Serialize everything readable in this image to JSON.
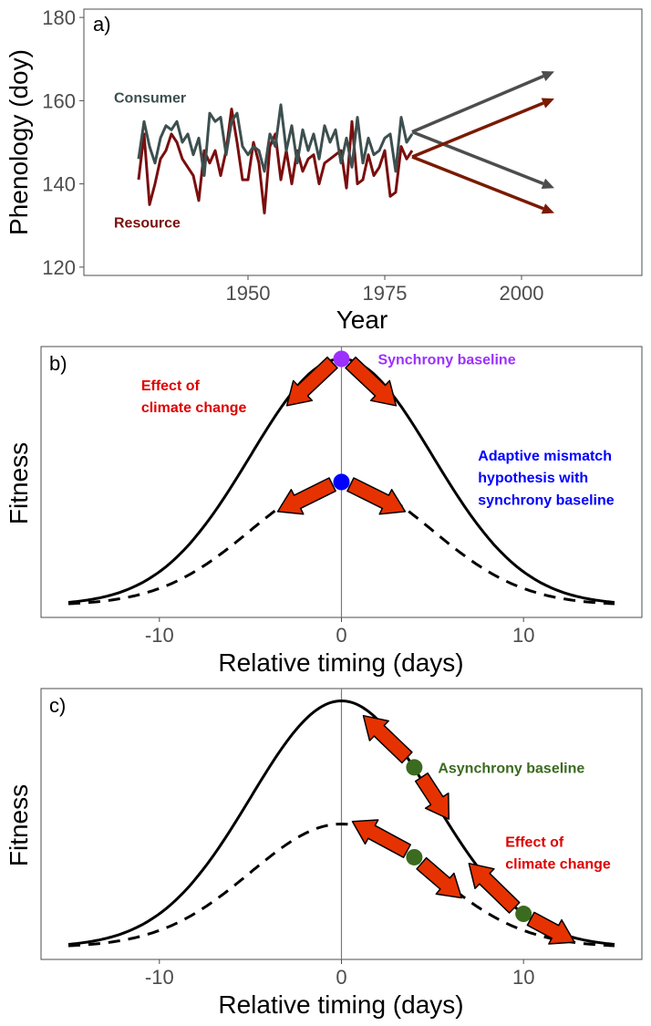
{
  "colors": {
    "consumer": "#3d4f4f",
    "resource": "#7a0e0e",
    "arrow_a_consumer": "#4d4d4d",
    "arrow_a_resource": "#7a1a00",
    "effect_arrow_fill": "#e63200",
    "effect_text": "#e00000",
    "sync_baseline_dot": "#9b30ff",
    "adaptive_dot": "#0000ff",
    "async_baseline": "#3a6b1f"
  },
  "chart_data": [
    {
      "type": "line",
      "panel_label": "a)",
      "xlabel": "Year",
      "ylabel": "Phenology (doy)",
      "xlim": [
        1920,
        2022
      ],
      "ylim": [
        118,
        182
      ],
      "x_ticks": [
        1950,
        1975,
        2000
      ],
      "y_ticks": [
        120,
        140,
        160,
        180
      ],
      "grid": false,
      "series": [
        {
          "name": "Consumer",
          "x": [
            1930,
            1931,
            1932,
            1933,
            1934,
            1935,
            1936,
            1937,
            1938,
            1939,
            1940,
            1941,
            1942,
            1943,
            1944,
            1945,
            1946,
            1947,
            1948,
            1949,
            1950,
            1951,
            1952,
            1953,
            1954,
            1955,
            1956,
            1957,
            1958,
            1959,
            1960,
            1961,
            1962,
            1963,
            1964,
            1965,
            1966,
            1967,
            1968,
            1969,
            1970,
            1971,
            1972,
            1973,
            1974,
            1975,
            1976,
            1977,
            1978,
            1979,
            1980
          ],
          "values": [
            146,
            155,
            149,
            145,
            151,
            154,
            153,
            155,
            150,
            152,
            147,
            151,
            142,
            157,
            155,
            156,
            147,
            155,
            157,
            149,
            147,
            149,
            148,
            143,
            152,
            149,
            159,
            148,
            154,
            145,
            153,
            148,
            152,
            146,
            154,
            150,
            153,
            145,
            151,
            144,
            156,
            145,
            151,
            147,
            148,
            151,
            152,
            143,
            156,
            150,
            152
          ]
        },
        {
          "name": "Resource",
          "x": [
            1930,
            1931,
            1932,
            1933,
            1934,
            1935,
            1936,
            1937,
            1938,
            1939,
            1940,
            1941,
            1942,
            1943,
            1944,
            1945,
            1946,
            1947,
            1948,
            1949,
            1950,
            1951,
            1952,
            1953,
            1954,
            1955,
            1956,
            1957,
            1958,
            1959,
            1960,
            1961,
            1962,
            1963,
            1964,
            1965,
            1966,
            1967,
            1968,
            1969,
            1970,
            1971,
            1972,
            1973,
            1974,
            1975,
            1976,
            1977,
            1978,
            1979,
            1980
          ],
          "values": [
            141,
            152,
            135,
            140,
            146,
            148,
            152,
            150,
            146,
            144,
            142,
            136,
            148,
            145,
            148,
            142,
            148,
            158,
            150,
            141,
            141,
            150,
            145,
            133,
            149,
            152,
            141,
            148,
            140,
            148,
            143,
            146,
            147,
            140,
            145,
            146,
            147,
            148,
            139,
            155,
            140,
            141,
            147,
            142,
            144,
            148,
            137,
            138,
            149,
            146,
            148
          ]
        }
      ],
      "projections": [
        {
          "series": "Consumer",
          "from": [
            1980,
            152.5
          ],
          "to": [
            2006,
            167
          ]
        },
        {
          "series": "Consumer",
          "from": [
            1980,
            152.5
          ],
          "to": [
            2006,
            139
          ]
        },
        {
          "series": "Resource",
          "from": [
            1980,
            146.5
          ],
          "to": [
            2006,
            160.5
          ]
        },
        {
          "series": "Resource",
          "from": [
            1980,
            146.5
          ],
          "to": [
            2006,
            133
          ]
        }
      ],
      "annotations": [
        {
          "text": "Consumer",
          "x": 1925.5,
          "y": 159.5,
          "color_key": "consumer"
        },
        {
          "text": "Resource",
          "x": 1925.5,
          "y": 129.5,
          "color_key": "resource"
        }
      ]
    },
    {
      "type": "line",
      "panel_label": "b)",
      "xlabel": "Relative timing (days)",
      "ylabel": "Fitness",
      "xlim": [
        -16.5,
        16.5
      ],
      "ylim": [
        -0.05,
        1.05
      ],
      "x_ticks": [
        -10,
        0,
        10
      ],
      "vline_x": 0,
      "grid": false,
      "curves": [
        {
          "style": "solid",
          "center": 0,
          "sigma": 5,
          "amplitude": 1.0,
          "x_range": [
            -15,
            15
          ]
        },
        {
          "style": "dashed",
          "center": 0,
          "sigma": 5,
          "amplitude": 0.5,
          "x_range": [
            -15,
            15
          ]
        }
      ],
      "points": [
        {
          "x": 0,
          "y": 1.0,
          "color_key": "sync_baseline_dot"
        },
        {
          "x": 0,
          "y": 0.5,
          "color_key": "adaptive_dot"
        }
      ],
      "effect_arrows": [
        {
          "from": [
            -0.5,
            0.985
          ],
          "to": [
            -3.0,
            0.81
          ]
        },
        {
          "from": [
            0.5,
            0.985
          ],
          "to": [
            3.0,
            0.81
          ]
        },
        {
          "from": [
            -0.5,
            0.49
          ],
          "to": [
            -3.5,
            0.38
          ]
        },
        {
          "from": [
            0.5,
            0.49
          ],
          "to": [
            3.5,
            0.38
          ]
        }
      ],
      "annotations": [
        {
          "text": "Synchrony baseline",
          "x": 2.0,
          "y": 1.0,
          "color_key": "sync_baseline_dot"
        },
        {
          "text": "Effect of",
          "x": -11.0,
          "y": 0.895,
          "color_key": "effect_text"
        },
        {
          "text": "climate change",
          "x": -11.0,
          "y": 0.805,
          "color_key": "effect_text"
        },
        {
          "text": "Adaptive mismatch",
          "x": 7.5,
          "y": 0.61,
          "color_key": "adaptive_dot"
        },
        {
          "text": "hypothesis with",
          "x": 7.5,
          "y": 0.52,
          "color_key": "adaptive_dot"
        },
        {
          "text": "synchrony baseline",
          "x": 7.5,
          "y": 0.43,
          "color_key": "adaptive_dot"
        }
      ]
    },
    {
      "type": "line",
      "panel_label": "c)",
      "xlabel": "Relative timing (days)",
      "ylabel": "Fitness",
      "xlim": [
        -16.5,
        16.5
      ],
      "ylim": [
        -0.05,
        1.05
      ],
      "x_ticks": [
        -10,
        0,
        10
      ],
      "vline_x": 0,
      "grid": false,
      "curves": [
        {
          "style": "solid",
          "center": 0,
          "sigma": 5,
          "amplitude": 1.0,
          "x_range": [
            -15,
            15
          ]
        },
        {
          "style": "dashed",
          "center": 0,
          "sigma": 5,
          "amplitude": 0.5,
          "x_range": [
            -15,
            15
          ]
        }
      ],
      "points": [
        {
          "x": 4,
          "y": 0.73,
          "color_key": "async_baseline"
        },
        {
          "x": 4,
          "y": 0.365,
          "color_key": "async_baseline"
        },
        {
          "x": 10,
          "y": 0.135,
          "color_key": "async_baseline"
        }
      ],
      "effect_arrows": [
        {
          "from": [
            3.6,
            0.77
          ],
          "to": [
            1.2,
            0.94
          ]
        },
        {
          "from": [
            4.4,
            0.69
          ],
          "to": [
            5.9,
            0.52
          ]
        },
        {
          "from": [
            3.6,
            0.39
          ],
          "to": [
            0.6,
            0.51
          ]
        },
        {
          "from": [
            4.4,
            0.34
          ],
          "to": [
            6.6,
            0.2
          ]
        },
        {
          "from": [
            9.5,
            0.16
          ],
          "to": [
            7.0,
            0.34
          ]
        },
        {
          "from": [
            10.4,
            0.115
          ],
          "to": [
            12.8,
            0.02
          ]
        }
      ],
      "annotations": [
        {
          "text": "Asynchrony baseline",
          "x": 5.3,
          "y": 0.73,
          "color_key": "async_baseline"
        },
        {
          "text": "Effect of",
          "x": 9.0,
          "y": 0.43,
          "color_key": "effect_text"
        },
        {
          "text": "climate change",
          "x": 9.0,
          "y": 0.34,
          "color_key": "effect_text"
        }
      ]
    }
  ]
}
